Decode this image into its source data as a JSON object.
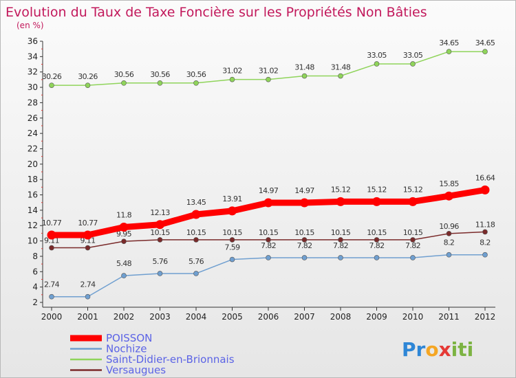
{
  "chart_data": {
    "type": "line",
    "title": "Evolution du Taux de Taxe Foncière sur les Propriétés Non Bâties",
    "subtitle": "(en %)",
    "x": [
      "2000",
      "2001",
      "2002",
      "2003",
      "2004",
      "2005",
      "2006",
      "2007",
      "2008",
      "2009",
      "2010",
      "2011",
      "2012"
    ],
    "yticks": [
      "2",
      "4",
      "6",
      "8",
      "10",
      "12",
      "14",
      "16",
      "18",
      "20",
      "22",
      "24",
      "26",
      "28",
      "30",
      "32",
      "34",
      "36"
    ],
    "ylim": [
      2,
      36
    ],
    "grid": false,
    "legend_position": "bottom-left",
    "series": [
      {
        "name": "POISSON",
        "color": "#ff0000",
        "values": [
          10.77,
          10.77,
          11.8,
          12.13,
          13.45,
          13.91,
          14.97,
          14.97,
          15.12,
          15.12,
          15.12,
          15.85,
          16.64
        ],
        "labels": [
          "10.77",
          "10.77",
          "11.8",
          "12.13",
          "13.45",
          "13.91",
          "14.97",
          "14.97",
          "15.12",
          "15.12",
          "15.12",
          "15.85",
          "16.64"
        ]
      },
      {
        "name": "Nochize",
        "color": "#6f9fd0",
        "values": [
          2.74,
          2.74,
          5.48,
          5.76,
          5.76,
          7.59,
          7.82,
          7.82,
          7.82,
          7.82,
          7.82,
          8.2,
          8.2
        ],
        "labels": [
          "2.74",
          "2.74",
          "5.48",
          "5.76",
          "5.76",
          "7.59",
          "7.82",
          "7.82",
          "7.82",
          "7.82",
          "7.82",
          "8.2",
          "8.2"
        ]
      },
      {
        "name": "Saint-Didier-en-Brionnais",
        "color": "#8fd45a",
        "values": [
          30.26,
          30.26,
          30.56,
          30.56,
          30.56,
          31.02,
          31.02,
          31.48,
          31.48,
          33.05,
          33.05,
          34.65,
          34.65
        ],
        "labels": [
          "30.26",
          "30.26",
          "30.56",
          "30.56",
          "30.56",
          "31.02",
          "31.02",
          "31.48",
          "31.48",
          "33.05",
          "33.05",
          "34.65",
          "34.65"
        ]
      },
      {
        "name": "Versaugues",
        "color": "#7a2a2a",
        "values": [
          9.11,
          9.11,
          9.95,
          10.15,
          10.15,
          10.15,
          10.15,
          10.15,
          10.15,
          10.15,
          10.15,
          10.96,
          11.18
        ],
        "labels": [
          "9.11",
          "9.11",
          "9.95",
          "10.15",
          "10.15",
          "10.15",
          "10.15",
          "10.15",
          "10.15",
          "10.15",
          "10.15",
          "10.96",
          "11.18"
        ]
      }
    ]
  },
  "logo": {
    "text": "Proxiti"
  }
}
